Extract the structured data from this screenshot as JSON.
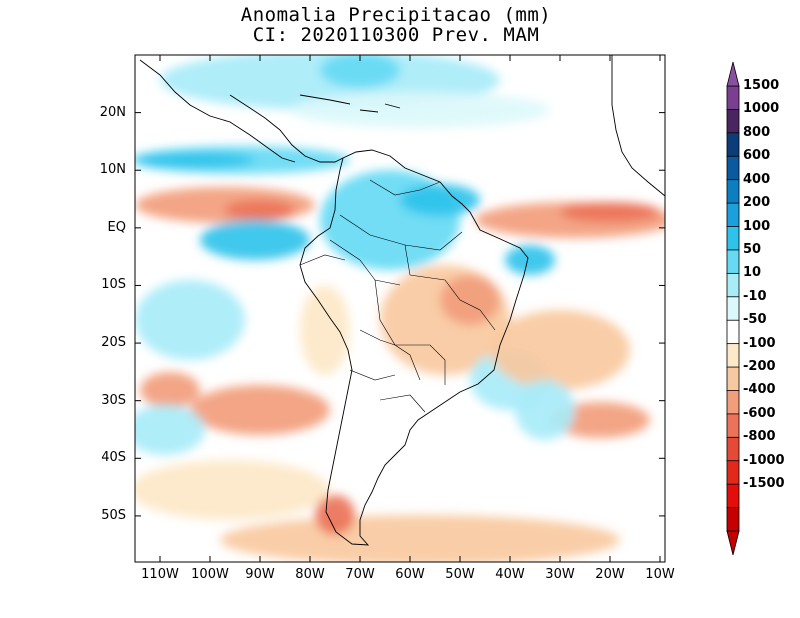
{
  "title": {
    "line1": "Anomalia Precipitacao (mm)",
    "line2": "CI: 2020110300 Prev. MAM"
  },
  "axes": {
    "lat_labels": [
      "20N",
      "10N",
      "EQ",
      "10S",
      "20S",
      "30S",
      "40S",
      "50S"
    ],
    "lat_values": [
      20,
      10,
      0,
      -10,
      -20,
      -30,
      -40,
      -50
    ],
    "lon_labels": [
      "110W",
      "100W",
      "90W",
      "80W",
      "70W",
      "60W",
      "50W",
      "40W",
      "30W",
      "20W",
      "10W"
    ],
    "lon_values": [
      -110,
      -100,
      -90,
      -80,
      -70,
      -60,
      -50,
      -40,
      -30,
      -20,
      -10
    ],
    "lon_range": [
      -115,
      -9
    ],
    "lat_range": [
      -58,
      30
    ]
  },
  "colorbar": {
    "labels": [
      "1500",
      "1000",
      "800",
      "600",
      "400",
      "200",
      "100",
      "50",
      "10",
      "-10",
      "-50",
      "-100",
      "-200",
      "-400",
      "-600",
      "-800",
      "-1000",
      "-1500"
    ],
    "colors": [
      "#7b3f91",
      "#4a2660",
      "#0b3d7a",
      "#0a5aa0",
      "#0c7fc2",
      "#1aa0dc",
      "#2fc3ec",
      "#66daf4",
      "#a8ecf8",
      "#dcf8fb",
      "#ffffff",
      "#fde8c8",
      "#f8c9a0",
      "#f29d7c",
      "#ec7359",
      "#e64a36",
      "#e32a1a",
      "#e30e0b",
      "#c40000"
    ],
    "top_arrow_color": "#8a4fa0",
    "bottom_arrow_color": "#c40000"
  },
  "palette": {
    "dry_light": "#fde8c8",
    "dry_mid": "#f8c9a0",
    "dry_strong": "#f29d7c",
    "dry_heavy": "#ec7359",
    "wet_light": "#dcf8fb",
    "wet_mid": "#a8ecf8",
    "wet_strong": "#66daf4",
    "wet_heavy": "#2fc3ec",
    "wet_extreme": "#1aa0dc",
    "neutral": "#ffffff"
  }
}
